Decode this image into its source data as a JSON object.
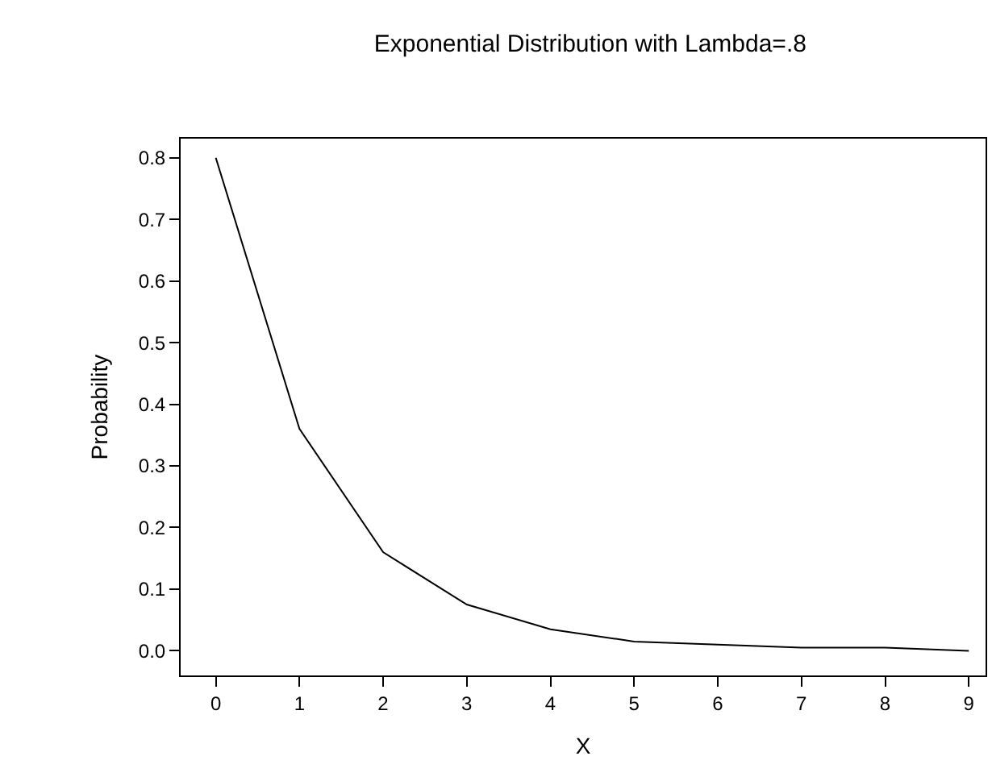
{
  "chart_data": {
    "type": "line",
    "title": "Exponential Distribution with Lambda=.8",
    "xlabel": "X",
    "ylabel": "Probability",
    "x": [
      0,
      1,
      2,
      3,
      4,
      5,
      6,
      7,
      8,
      9
    ],
    "series": [
      {
        "color": "#000000",
        "values": [
          0.8,
          0.36,
          0.16,
          0.075,
          0.035,
          0.015,
          0.01,
          0.005,
          0.005,
          0.0
        ]
      }
    ],
    "xlim": [
      -0.42,
      9.2
    ],
    "xticks": [
      0,
      1,
      2,
      3,
      4,
      5,
      6,
      7,
      8,
      9
    ],
    "ylim": [
      -0.04,
      0.831
    ],
    "yticks": [
      {
        "value": 0,
        "label": "0.0"
      },
      0.1,
      0.2,
      0.3,
      0.4,
      0.5,
      0.6,
      0.7,
      0.8
    ],
    "marker": "none",
    "line_style": "solid"
  }
}
